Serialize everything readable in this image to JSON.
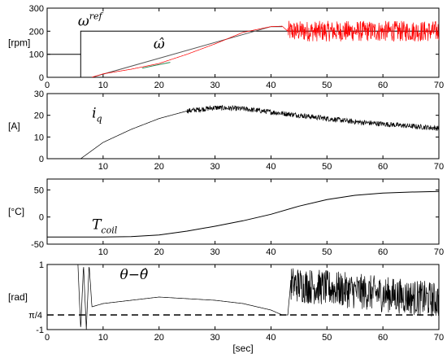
{
  "chart_data": [
    {
      "type": "line",
      "ylabel": "[rpm]",
      "xlim": [
        0,
        70
      ],
      "ylim": [
        0,
        300
      ],
      "xticks": [
        0,
        10,
        20,
        30,
        40,
        50,
        60,
        70
      ],
      "yticks": [
        0,
        100,
        200,
        300
      ],
      "annotations": [
        {
          "text": "ω",
          "sup": "ref",
          "x": 5.5,
          "y": 225
        },
        {
          "text": "ω̂",
          "x": 19,
          "y": 125
        }
      ],
      "series": [
        {
          "key": "ref",
          "color": "#000000",
          "x": [
            0,
            6,
            6,
            7,
            40,
            42,
            70
          ],
          "y": [
            100,
            100,
            200,
            200,
            200,
            200,
            200
          ]
        },
        {
          "key": "vertical",
          "color": "#000000",
          "x": [
            6,
            6
          ],
          "y": [
            0,
            100
          ]
        },
        {
          "key": "ref_ramp",
          "color": "#555555",
          "x": [
            8,
            40,
            42
          ],
          "y": [
            0,
            220,
            220
          ]
        },
        {
          "key": "est",
          "color": "#ff0000",
          "x": [
            8,
            10,
            15,
            20,
            25,
            30,
            35,
            40,
            42,
            43,
            70
          ],
          "y": [
            0,
            15,
            35,
            60,
            100,
            145,
            195,
            220,
            222,
            200,
            200
          ],
          "noise_from": 43,
          "noise_amp": 45
        },
        {
          "key": "est_green",
          "color": "#2e8b57",
          "x": [
            17,
            19,
            22
          ],
          "y": [
            40,
            50,
            65
          ]
        }
      ]
    },
    {
      "type": "line",
      "ylabel": "[A]",
      "xlim": [
        0,
        70
      ],
      "ylim": [
        0,
        30
      ],
      "xticks": [
        10,
        20,
        30,
        40,
        50,
        60,
        70
      ],
      "yticks": [
        0,
        10,
        20,
        30
      ],
      "annotations": [
        {
          "text": "i",
          "sub": "q",
          "x": 8,
          "y": 19
        }
      ],
      "series": [
        {
          "key": "iq",
          "color": "#000000",
          "x": [
            6,
            10,
            15,
            20,
            25,
            30,
            35,
            40,
            45,
            50,
            55,
            60,
            65,
            70
          ],
          "y": [
            0,
            7.5,
            13.5,
            18.5,
            22,
            23.5,
            23,
            21.5,
            20,
            18.5,
            17,
            16,
            15,
            14
          ],
          "noise_from": 25,
          "noise_amp": 1.2
        }
      ]
    },
    {
      "type": "line",
      "ylabel": "[°C]",
      "xlim": [
        0,
        70
      ],
      "ylim": [
        -50,
        70
      ],
      "xticks": [
        10,
        20,
        30,
        40,
        50,
        60,
        70
      ],
      "yticks": [
        -50,
        0,
        50
      ],
      "annotations": [
        {
          "text": "T",
          "sub": "coil",
          "x": 8,
          "y": -22
        }
      ],
      "series": [
        {
          "key": "tcoil",
          "color": "#000000",
          "x": [
            0,
            5,
            10,
            15,
            20,
            25,
            30,
            35,
            40,
            45,
            50,
            55,
            60,
            65,
            70
          ],
          "y": [
            -37,
            -37,
            -37,
            -36,
            -33,
            -26,
            -17,
            -7,
            5,
            20,
            32,
            40,
            44,
            46,
            47
          ]
        }
      ]
    },
    {
      "type": "line",
      "ylabel": "[rad]",
      "xlim": [
        0,
        70
      ],
      "ylim": [
        -1,
        1
      ],
      "xticks": [
        0,
        10,
        20,
        30,
        40,
        50,
        60,
        70
      ],
      "xtick_labels": [
        "0",
        "10",
        "20",
        "30",
        "40",
        "50",
        "60",
        "70"
      ],
      "yticks": [
        -1,
        1
      ],
      "xlabel": "[sec]",
      "annotations": [
        {
          "text": "θ−θ̂",
          "x": 13,
          "y": 0.55
        }
      ],
      "hline": {
        "y": -0.55,
        "style": "dashed",
        "label": "π/4"
      },
      "series": [
        {
          "key": "err",
          "color": "#000000",
          "x": [
            5.5,
            6,
            6.5,
            7,
            7.5,
            8,
            10,
            15,
            20,
            25,
            30,
            35,
            40,
            42,
            43,
            43.5,
            70
          ],
          "y": [
            1,
            -1,
            1,
            -1,
            1,
            -0.3,
            -0.2,
            -0.1,
            0.0,
            -0.05,
            -0.1,
            -0.2,
            -0.4,
            -0.55,
            -0.55,
            0.4,
            -0.1
          ],
          "noise_from": 43.5,
          "noise_amp": 0.55
        }
      ]
    }
  ]
}
